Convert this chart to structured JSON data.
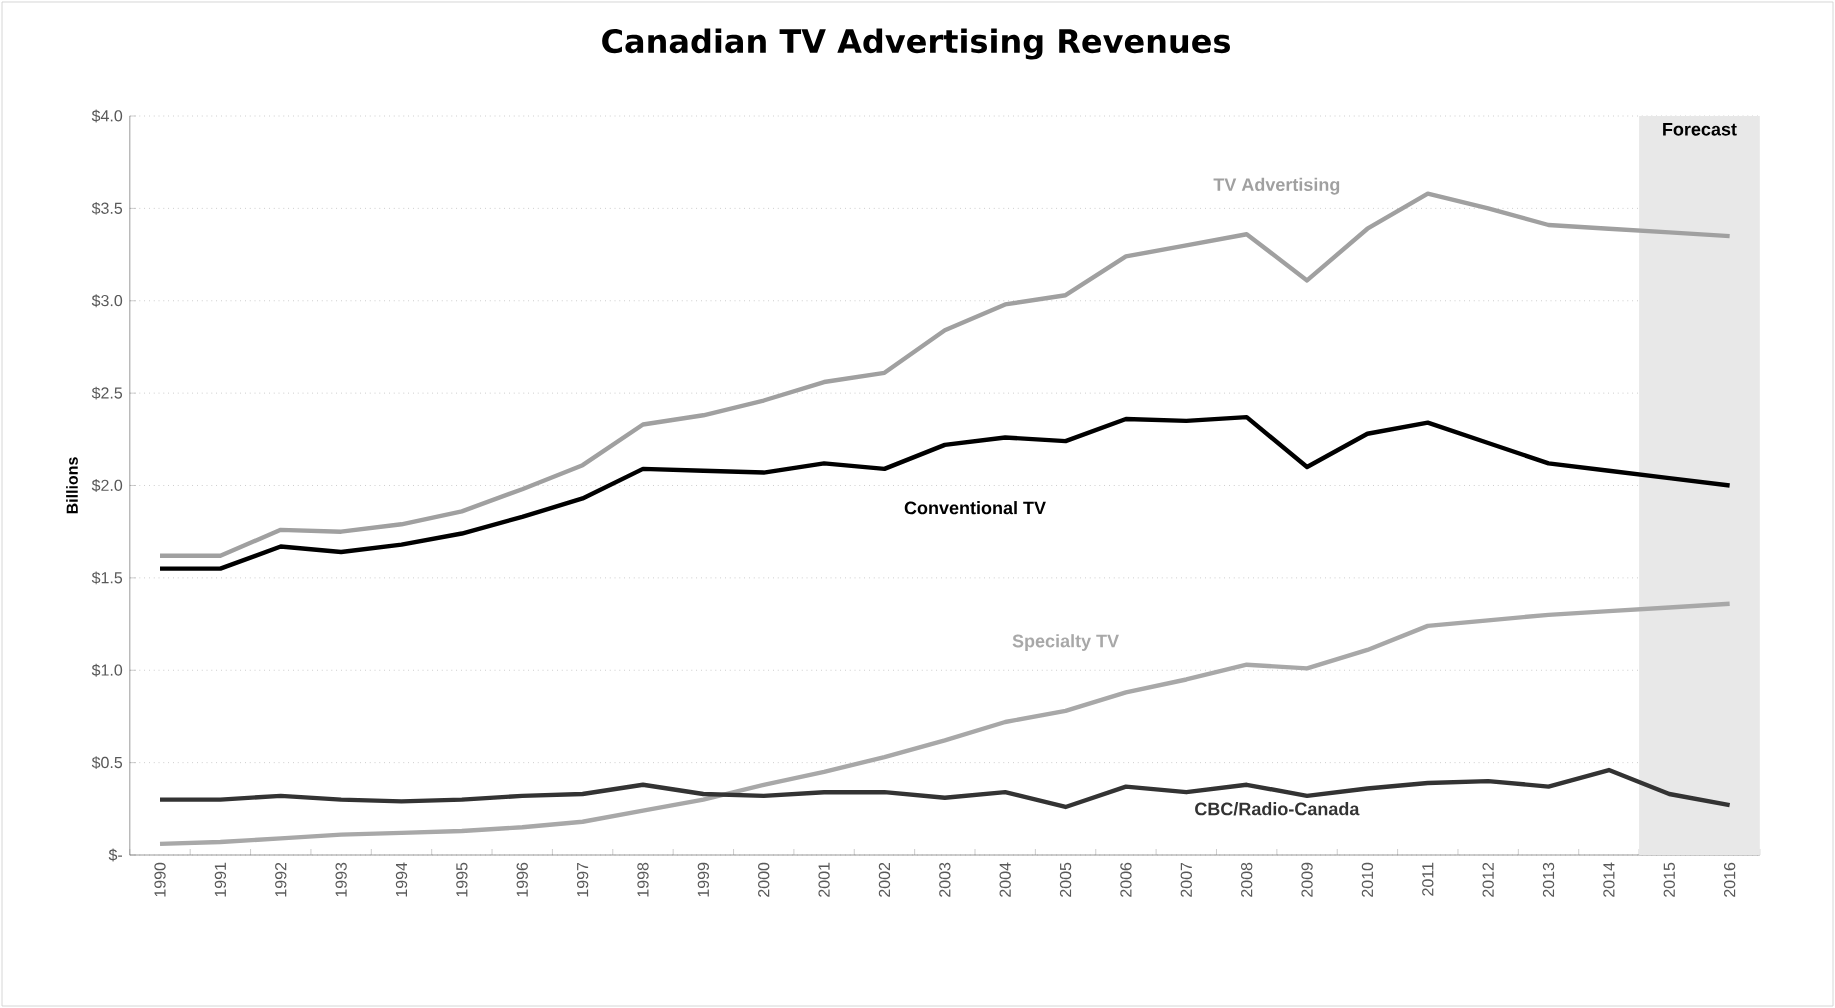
{
  "chart_data": {
    "type": "line",
    "title": "Canadian TV Advertising Revenues",
    "ylabel": "Billions",
    "categories": [
      "1990",
      "1991",
      "1992",
      "1993",
      "1994",
      "1995",
      "1996",
      "1997",
      "1998",
      "1999",
      "2000",
      "2001",
      "2002",
      "2003",
      "2004",
      "2005",
      "2006",
      "2007",
      "2008",
      "2009",
      "2010",
      "2011",
      "2012",
      "2013",
      "2014",
      "2015",
      "2016"
    ],
    "series": [
      {
        "name": "TV Advertising",
        "color": "#a0a0a0",
        "values": [
          1.62,
          1.62,
          1.76,
          1.75,
          1.79,
          1.86,
          1.98,
          2.11,
          2.33,
          2.38,
          2.46,
          2.56,
          2.61,
          2.84,
          2.98,
          3.03,
          3.24,
          3.3,
          3.36,
          3.11,
          3.39,
          3.58,
          3.5,
          3.41,
          3.39,
          3.37,
          3.35
        ]
      },
      {
        "name": "Conventional TV",
        "color": "#000000",
        "values": [
          1.55,
          1.55,
          1.67,
          1.64,
          1.68,
          1.74,
          1.83,
          1.93,
          2.09,
          2.08,
          2.07,
          2.12,
          2.09,
          2.22,
          2.26,
          2.24,
          2.36,
          2.35,
          2.37,
          2.1,
          2.28,
          2.34,
          2.23,
          2.12,
          2.08,
          2.04,
          2.0
        ]
      },
      {
        "name": "Specialty TV",
        "color": "#a8a8a8",
        "values": [
          0.06,
          0.07,
          0.09,
          0.11,
          0.12,
          0.13,
          0.15,
          0.18,
          0.24,
          0.3,
          0.38,
          0.45,
          0.53,
          0.62,
          0.72,
          0.78,
          0.88,
          0.95,
          1.03,
          1.01,
          1.11,
          1.24,
          1.27,
          1.3,
          1.32,
          1.34,
          1.36
        ]
      },
      {
        "name": "CBC/Radio-Canada",
        "color": "#333333",
        "values": [
          0.3,
          0.3,
          0.32,
          0.3,
          0.29,
          0.3,
          0.32,
          0.33,
          0.38,
          0.33,
          0.32,
          0.34,
          0.34,
          0.31,
          0.34,
          0.26,
          0.37,
          0.34,
          0.38,
          0.32,
          0.36,
          0.39,
          0.4,
          0.37,
          0.46,
          0.33,
          0.27
        ]
      }
    ],
    "ylim": [
      0,
      4
    ],
    "yticks": [
      {
        "value": 0,
        "label": "$-"
      },
      {
        "value": 0.5,
        "label": "$0.5"
      },
      {
        "value": 1,
        "label": "$1.0"
      },
      {
        "value": 1.5,
        "label": "$1.5"
      },
      {
        "value": 2,
        "label": "$2.0"
      },
      {
        "value": 2.5,
        "label": "$2.5"
      },
      {
        "value": 3,
        "label": "$3.0"
      },
      {
        "value": 3.5,
        "label": "$3.5"
      },
      {
        "value": 4,
        "label": "$4.0"
      }
    ],
    "grid": "y",
    "bands": [
      {
        "axis": "x",
        "from": "2015",
        "to": "2016",
        "label": "Forecast",
        "color": "#e8e8e8"
      }
    ]
  }
}
